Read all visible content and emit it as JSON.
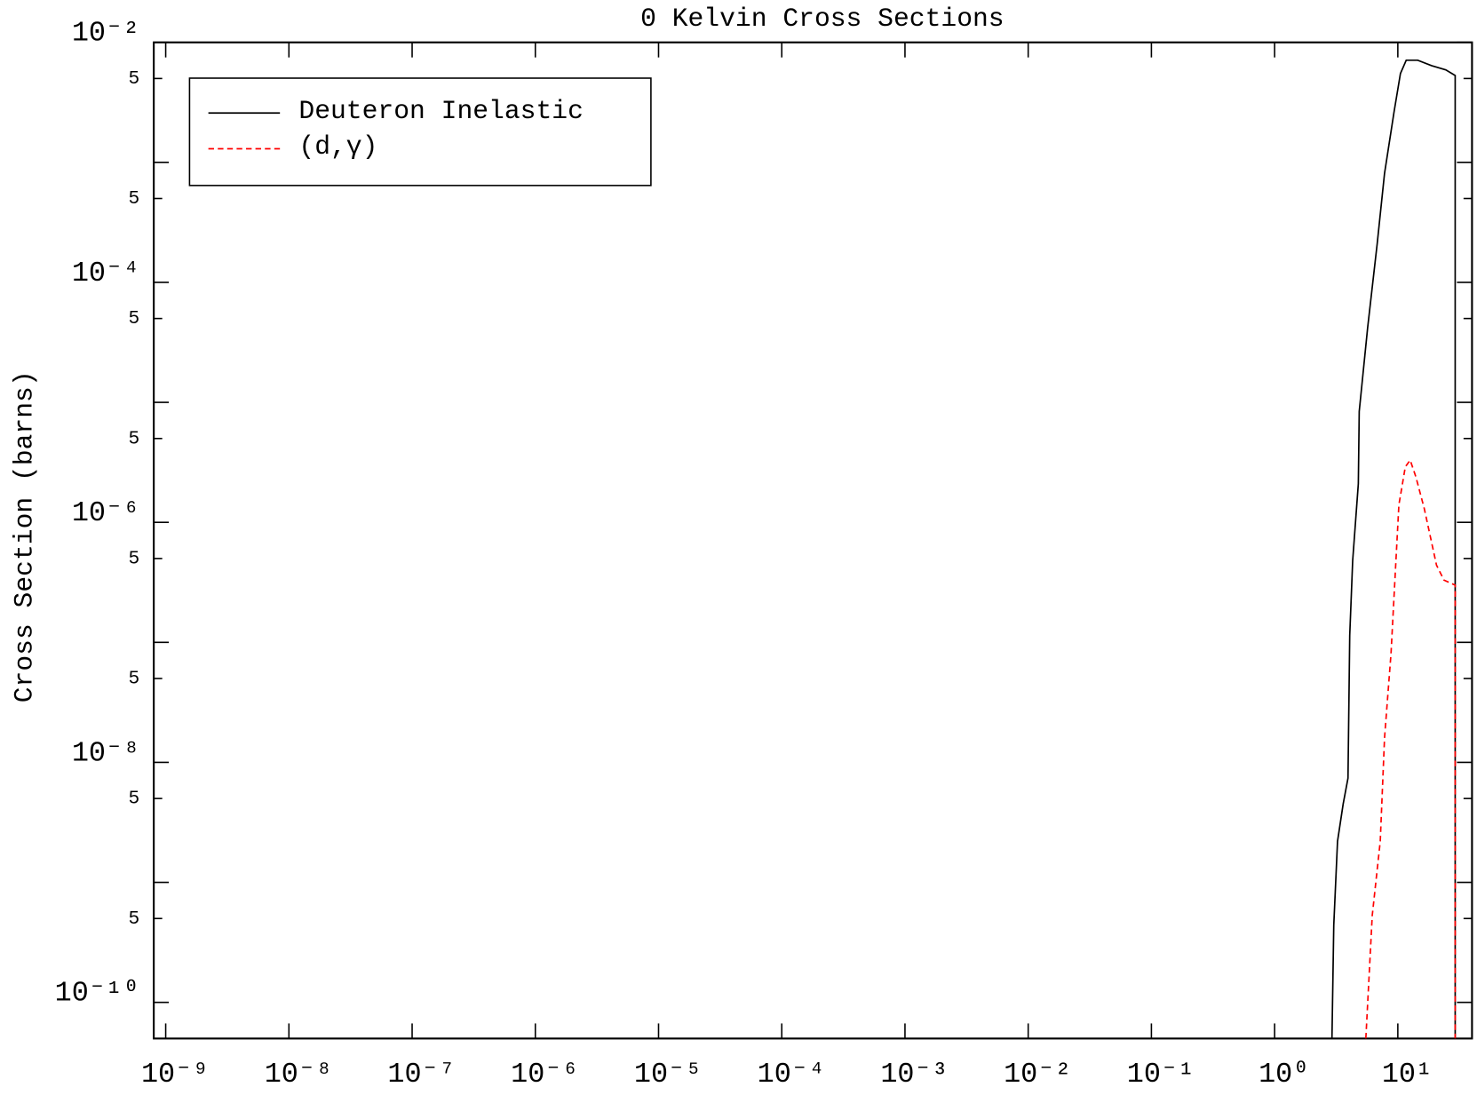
{
  "chart_data": {
    "type": "line",
    "title": "0 Kelvin Cross Sections",
    "y_label": "Cross Section (barns)",
    "x_scale": "log",
    "y_scale": "log",
    "xlim": [
      8e-10,
      40
    ],
    "ylim": [
      5e-11,
      0.01
    ],
    "xticks": [
      {
        "value": 1e-09,
        "label": "10⁻⁹"
      },
      {
        "value": 1e-08,
        "label": "10⁻⁸"
      },
      {
        "value": 1e-07,
        "label": "10⁻⁷"
      },
      {
        "value": 1e-06,
        "label": "10⁻⁶"
      },
      {
        "value": 1e-05,
        "label": "10⁻⁵"
      },
      {
        "value": 0.0001,
        "label": "10⁻⁴"
      },
      {
        "value": 0.001,
        "label": "10⁻³"
      },
      {
        "value": 0.01,
        "label": "10⁻²"
      },
      {
        "value": 0.1,
        "label": "10⁻¹"
      },
      {
        "value": 1,
        "label": "10⁰"
      },
      {
        "value": 10,
        "label": "10¹"
      }
    ],
    "yticks": [
      {
        "value": 0.01,
        "label": "10⁻²"
      },
      {
        "value": 0.005,
        "label": "5"
      },
      {
        "value": 0.0005,
        "label": "5"
      },
      {
        "value": 0.0001,
        "label": "10⁻⁴"
      },
      {
        "value": 5e-05,
        "label": "5"
      },
      {
        "value": 5e-06,
        "label": "5"
      },
      {
        "value": 1e-06,
        "label": "10⁻⁶"
      },
      {
        "value": 5e-07,
        "label": "5"
      },
      {
        "value": 5e-08,
        "label": "5"
      },
      {
        "value": 1e-08,
        "label": "10⁻⁸"
      },
      {
        "value": 5e-09,
        "label": "5"
      },
      {
        "value": 5e-10,
        "label": "5"
      },
      {
        "value": 1e-10,
        "label": "10⁻¹⁰"
      }
    ],
    "yminor_ticks": [
      0.001,
      1e-05,
      1e-07,
      1e-09
    ],
    "legend": "upper left",
    "series": [
      {
        "name": "Deuteron Inelastic",
        "color": "#000000",
        "linestyle": "solid",
        "x": [
          2.92,
          3.02,
          3.24,
          3.6,
          3.94,
          4.07,
          4.3,
          4.78,
          4.86,
          5.69,
          6.8,
          7.8,
          9.3,
          10.5,
          11.7,
          14.5,
          18.8,
          24.5,
          29.2,
          29.2
        ],
        "values": [
          5e-11,
          4.4e-10,
          2.2e-09,
          4.5e-09,
          7.4e-09,
          1.14e-07,
          4.8e-07,
          2.1e-06,
          8.4e-06,
          4.2e-05,
          0.00021,
          0.00081,
          0.0026,
          0.0055,
          0.0071,
          0.0071,
          0.0064,
          0.0059,
          0.0053,
          5e-11
        ]
      },
      {
        "name": "(d,γ)",
        "color": "#ff0000",
        "linestyle": "dashed",
        "x": [
          5.5,
          6.2,
          7.2,
          7.8,
          8.8,
          10.2,
          11.5,
          12.6,
          14.0,
          16.4,
          20.6,
          23.7,
          29.2,
          29.2
        ],
        "values": [
          5e-11,
          5.3e-10,
          2.2e-09,
          1.6e-08,
          8e-08,
          1.4e-06,
          2.9e-06,
          3.3e-06,
          2.4e-06,
          1.3e-06,
          4.4e-07,
          3.3e-07,
          3e-07,
          5e-11
        ]
      }
    ]
  }
}
